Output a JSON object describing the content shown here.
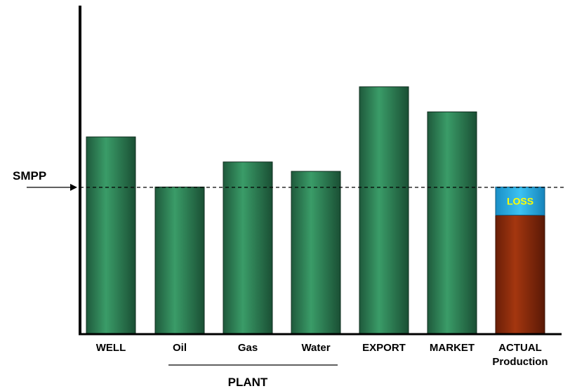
{
  "chart_data": {
    "type": "bar",
    "title": "",
    "xlabel": "",
    "ylabel": "",
    "ylim": [
      0,
      100
    ],
    "grid": false,
    "categories": [
      {
        "lines": [
          "WELL"
        ]
      },
      {
        "lines": [
          "Oil"
        ]
      },
      {
        "lines": [
          "Gas"
        ]
      },
      {
        "lines": [
          "Water"
        ]
      },
      {
        "lines": [
          "EXPORT"
        ]
      },
      {
        "lines": [
          "MARKET"
        ]
      },
      {
        "lines": [
          "ACTUAL",
          "Production"
        ]
      }
    ],
    "values": [
      63,
      47,
      55,
      52,
      79,
      71,
      47
    ],
    "group_label": {
      "text": "PLANT",
      "members": [
        "Oil",
        "Gas",
        "Water"
      ]
    },
    "reference_line": {
      "label": "SMPP",
      "value": 47
    },
    "actual_production": {
      "category": "ACTUAL Production",
      "production_value": 38,
      "loss_label": "LOSS",
      "loss_range": [
        38,
        47
      ]
    },
    "colors": {
      "bar": "#2e8a5a",
      "actual": "#8a2a0c",
      "loss": "#22a9e0",
      "loss_text": "#ffff00"
    }
  }
}
